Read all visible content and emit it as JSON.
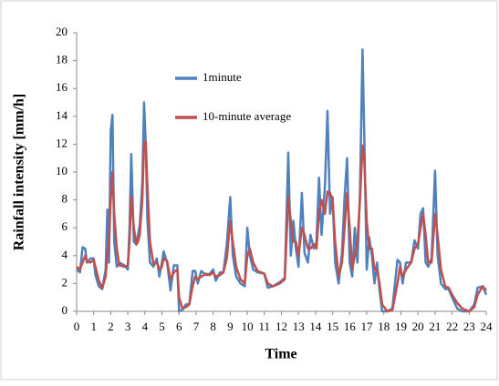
{
  "chart_data": {
    "type": "line",
    "xlabel": "Time",
    "ylabel": "Rainfall intensity [mm/h]",
    "xlim": [
      0,
      24
    ],
    "xticks": [
      0,
      1,
      2,
      3,
      4,
      5,
      6,
      7,
      8,
      9,
      10,
      11,
      12,
      13,
      14,
      15,
      16,
      17,
      18,
      19,
      20,
      21,
      22,
      23,
      24
    ],
    "ylim": [
      0,
      20
    ],
    "yticks": [
      0,
      2,
      4,
      6,
      8,
      10,
      12,
      14,
      16,
      18,
      20
    ],
    "legend": "upper left",
    "grid": false,
    "x": [
      0,
      0.2,
      0.35,
      0.5,
      0.6,
      0.8,
      1.0,
      1.1,
      1.3,
      1.5,
      1.7,
      1.8,
      1.9,
      2.0,
      2.1,
      2.2,
      2.35,
      2.5,
      2.8,
      3.0,
      3.1,
      3.2,
      3.35,
      3.5,
      3.6,
      3.7,
      3.85,
      3.95,
      4.05,
      4.15,
      4.3,
      4.5,
      4.7,
      4.85,
      5.0,
      5.1,
      5.3,
      5.5,
      5.7,
      5.9,
      6.0,
      6.2,
      6.4,
      6.6,
      6.8,
      6.95,
      7.1,
      7.3,
      7.6,
      7.8,
      8.0,
      8.15,
      8.4,
      8.6,
      8.8,
      9.0,
      9.15,
      9.35,
      9.6,
      9.85,
      10.0,
      10.15,
      10.35,
      10.6,
      11.0,
      11.2,
      11.5,
      11.9,
      12.2,
      12.4,
      12.55,
      12.7,
      12.85,
      13.0,
      13.2,
      13.35,
      13.55,
      13.7,
      13.9,
      14.05,
      14.2,
      14.35,
      14.55,
      14.7,
      14.85,
      15.0,
      15.15,
      15.35,
      15.55,
      15.7,
      15.85,
      16.0,
      16.15,
      16.3,
      16.45,
      16.6,
      16.75,
      16.85,
      17.0,
      17.15,
      17.3,
      17.45,
      17.6,
      17.75,
      17.9,
      18.2,
      18.5,
      18.8,
      18.95,
      19.1,
      19.3,
      19.6,
      19.8,
      20.0,
      20.15,
      20.3,
      20.45,
      20.6,
      20.8,
      21.0,
      21.15,
      21.35,
      21.6,
      21.8,
      22.0,
      22.3,
      22.6,
      23.0,
      23.3,
      23.5,
      23.8,
      24.0
    ],
    "series": [
      {
        "name": "1minute",
        "color": "#4f81bd",
        "values": [
          3.0,
          2.8,
          4.6,
          4.5,
          3.5,
          3.8,
          3.8,
          2.6,
          1.8,
          1.6,
          3.0,
          7.3,
          3.5,
          13.0,
          14.1,
          5.0,
          3.2,
          3.5,
          3.3,
          3.0,
          6.0,
          11.3,
          5.0,
          4.8,
          5.5,
          6.2,
          9.2,
          15.0,
          12.0,
          6.5,
          3.5,
          3.2,
          3.8,
          2.5,
          3.5,
          4.3,
          3.5,
          1.5,
          3.3,
          3.3,
          0,
          0.1,
          0.5,
          0.5,
          2.9,
          2.9,
          2.0,
          2.9,
          2.6,
          2.7,
          3.0,
          2.2,
          2.8,
          2.8,
          4.8,
          8.2,
          4.0,
          2.5,
          2.0,
          1.8,
          6.0,
          4.0,
          3.0,
          2.8,
          2.7,
          1.7,
          1.8,
          2.1,
          2.4,
          11.4,
          4.0,
          6.5,
          4.5,
          3.2,
          8.5,
          4.2,
          3.5,
          5.5,
          4.5,
          5.0,
          9.6,
          5.5,
          9.0,
          14.4,
          7.0,
          8.2,
          3.5,
          2.0,
          4.2,
          8.2,
          11.0,
          3.5,
          2.5,
          6.0,
          3.5,
          8.5,
          18.8,
          13.0,
          3.0,
          5.3,
          4.0,
          2.0,
          3.5,
          1.5,
          0,
          0,
          0.2,
          3.7,
          3.5,
          2.0,
          3.5,
          3.5,
          5.1,
          4.5,
          7.0,
          7.4,
          3.5,
          3.2,
          3.8,
          10.1,
          4.0,
          2.0,
          1.6,
          1.6,
          1.0,
          0.2,
          0,
          0,
          0.5,
          1.7,
          1.8,
          1.2
        ]
      },
      {
        "name": "10-minute average",
        "color": "#c0504d",
        "values": [
          3.2,
          3.0,
          3.5,
          4.0,
          3.6,
          3.5,
          3.7,
          3.2,
          2.2,
          1.7,
          2.5,
          4.0,
          5.0,
          8.0,
          10.0,
          7.0,
          4.5,
          3.3,
          3.2,
          3.3,
          5.0,
          8.3,
          6.0,
          4.8,
          5.0,
          5.5,
          8.0,
          12.0,
          12.2,
          9.0,
          5.0,
          3.4,
          3.5,
          3.0,
          3.2,
          3.8,
          3.6,
          2.3,
          2.8,
          3.0,
          1.0,
          0.2,
          0.3,
          0.5,
          1.8,
          2.5,
          2.3,
          2.5,
          2.7,
          2.6,
          2.8,
          2.5,
          2.6,
          2.8,
          3.8,
          6.5,
          5.0,
          3.2,
          2.3,
          2.0,
          4.0,
          4.5,
          3.5,
          2.9,
          2.7,
          2.0,
          1.8,
          2.0,
          2.3,
          8.2,
          6.5,
          5.0,
          5.0,
          4.0,
          6.0,
          5.5,
          4.5,
          4.5,
          4.8,
          4.5,
          7.0,
          8.0,
          7.0,
          8.6,
          8.5,
          8.0,
          5.0,
          2.5,
          3.5,
          6.0,
          8.5,
          6.0,
          3.0,
          4.0,
          5.0,
          8.0,
          11.9,
          11.0,
          6.5,
          4.5,
          4.5,
          3.0,
          3.0,
          2.0,
          0.5,
          0,
          0.1,
          2.0,
          3.2,
          2.5,
          3.0,
          3.5,
          4.5,
          4.8,
          6.0,
          7.0,
          5.5,
          3.5,
          3.5,
          7.0,
          5.5,
          3.0,
          1.8,
          1.7,
          1.2,
          0.6,
          0.2,
          0,
          0.3,
          1.2,
          1.8,
          1.5
        ]
      }
    ]
  }
}
